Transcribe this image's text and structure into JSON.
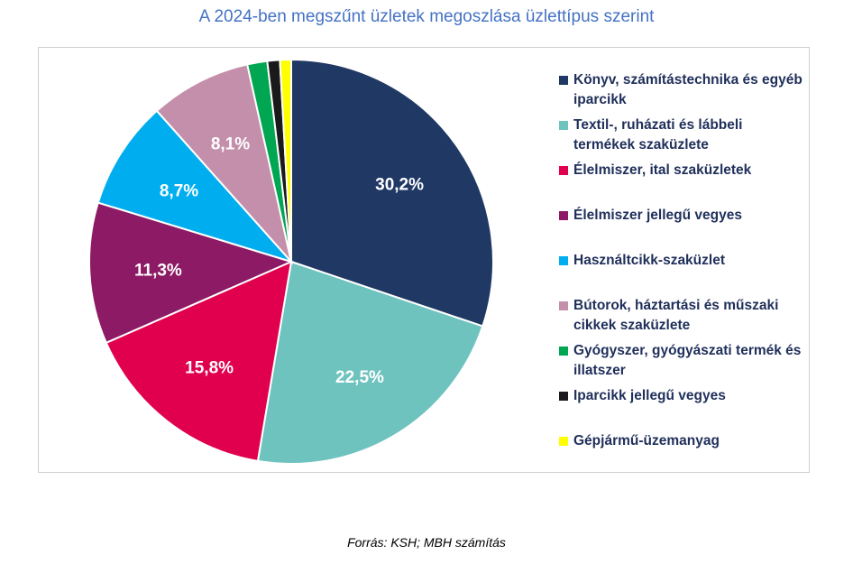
{
  "title": "A 2024-ben megszűnt üzletek megoszlása üzlettípus szerint",
  "source": "Forrás: KSH; MBH számítás",
  "chart_data": {
    "type": "pie",
    "slices": [
      {
        "name": "Könyv, számítástechnika és egyéb iparcikk",
        "value": 30.2,
        "label": "30,2%",
        "color": "#203864"
      },
      {
        "name": "Textil-, ruházati és lábbeli termékek szaküzlete",
        "value": 22.5,
        "label": "22,5%",
        "color": "#6fc3be"
      },
      {
        "name": "Élelmiszer, ital szaküzletek",
        "value": 15.8,
        "label": "15,8%",
        "color": "#e0004d"
      },
      {
        "name": "Élelmiszer jellegű vegyes",
        "value": 11.3,
        "label": "11,3%",
        "color": "#8c1a64"
      },
      {
        "name": "Használtcikk-szaküzlet",
        "value": 8.7,
        "label": "8,7%",
        "color": "#00aeef"
      },
      {
        "name": "Bútorok, háztartási és műszaki cikkek szaküzlete",
        "value": 8.1,
        "label": "8,1%",
        "color": "#c48fab"
      },
      {
        "name": "Gyógyszer, gyógyászati termék és illatszer",
        "value": 1.6,
        "label": "",
        "color": "#00a651"
      },
      {
        "name": "Iparcikk jellegű vegyes",
        "value": 1.0,
        "label": "",
        "color": "#1a1a1a"
      },
      {
        "name": "Gépjármű-üzemanyag",
        "value": 0.9,
        "label": "",
        "color": "#ffff00"
      }
    ],
    "legend_position": "right"
  }
}
